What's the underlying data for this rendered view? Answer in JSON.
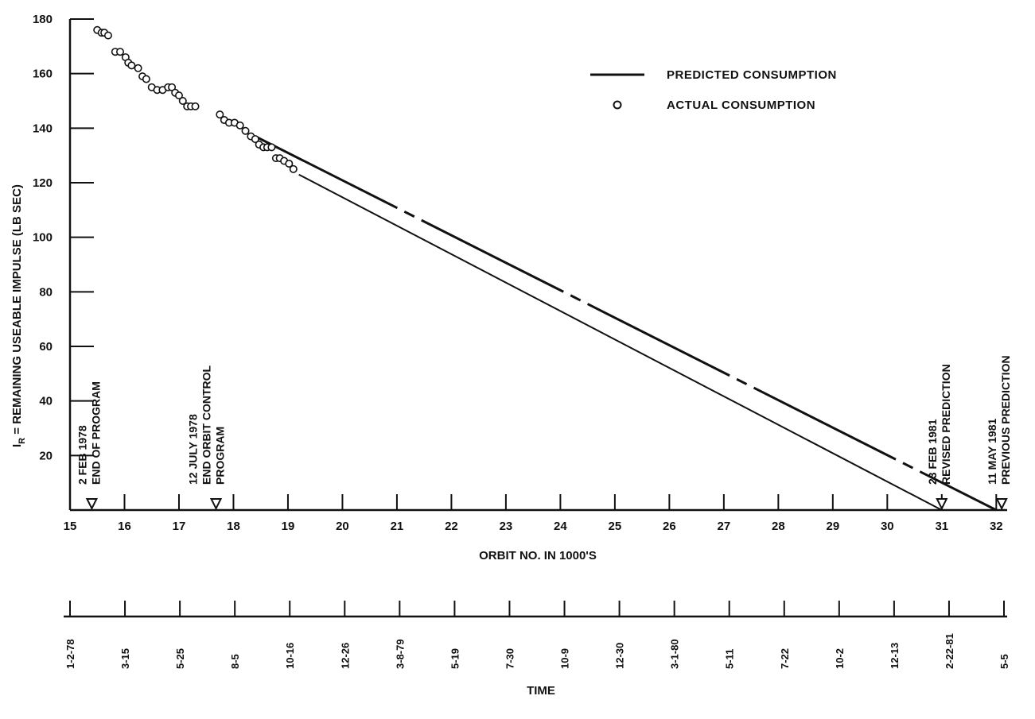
{
  "chart_data": {
    "type": "line",
    "xlabel": "ORBIT NO. IN 1000'S",
    "ylabel": "I",
    "ylabel_sub": "R",
    "ylabel_rest": " = REMAINING USEABLE IMPULSE (LB SEC)",
    "xlim": [
      15,
      32.2
    ],
    "ylim": [
      0,
      180
    ],
    "x_ticks": [
      15,
      16,
      17,
      18,
      19,
      20,
      21,
      22,
      23,
      24,
      25,
      26,
      27,
      28,
      29,
      30,
      31,
      32
    ],
    "y_ticks": [
      20,
      40,
      60,
      80,
      100,
      120,
      140,
      160,
      180
    ],
    "legend": {
      "predicted_label": "PREDICTED CONSUMPTION",
      "actual_label": "ACTUAL CONSUMPTION",
      "placement": "top-right"
    },
    "series": [
      {
        "name": "PREDICTED CONSUMPTION",
        "style": "solid",
        "x": [
          19.2,
          31.0
        ],
        "y": [
          123,
          0
        ]
      },
      {
        "name": "PREDICTED CONSUMPTION",
        "style": "dash-dot",
        "x": [
          18.4,
          32.0
        ],
        "y": [
          137,
          0
        ]
      },
      {
        "name": "ACTUAL CONSUMPTION",
        "style": "circles",
        "x": [
          15.5,
          15.58,
          15.63,
          15.7,
          15.83,
          15.92,
          16.02,
          16.07,
          16.13,
          16.25,
          16.33,
          16.4,
          16.5,
          16.6,
          16.7,
          16.8,
          16.87,
          16.93,
          17.0,
          17.07,
          17.15,
          17.22,
          17.3,
          17.75,
          17.83,
          17.92,
          18.02,
          18.12,
          18.22,
          18.32,
          18.4,
          18.47,
          18.55,
          18.62,
          18.7,
          18.78,
          18.85,
          18.93,
          19.02,
          19.1
        ],
        "y": [
          176,
          175,
          175,
          174,
          168,
          168,
          166,
          164,
          163,
          162,
          159,
          158,
          155,
          154,
          154,
          155,
          155,
          153,
          152,
          150,
          148,
          148,
          148,
          145,
          143,
          142,
          142,
          141,
          139,
          137,
          136,
          134,
          133,
          133,
          133,
          129,
          129,
          128,
          127,
          125
        ]
      }
    ],
    "markers": [
      {
        "x": 15.4,
        "lines": [
          "2 FEB 1978",
          "END OF PROGRAM"
        ]
      },
      {
        "x": 17.68,
        "lines": [
          "12 JULY 1978",
          "END ORBIT CONTROL",
          "PROGRAM"
        ]
      },
      {
        "x": 31.0,
        "lines": [
          "23 FEB 1981",
          "REVISED PREDICTION"
        ]
      },
      {
        "x": 32.1,
        "lines": [
          "11 MAY 1981",
          "PREVIOUS PREDICTION"
        ]
      }
    ],
    "time_axis": {
      "title": "TIME",
      "labels": [
        "1-2-78",
        "3-15",
        "5-25",
        "8-5",
        "10-16",
        "12-26",
        "3-8-79",
        "5-19",
        "7-30",
        "10-9",
        "12-30",
        "3-1-80",
        "5-11",
        "7-22",
        "10-2",
        "12-13",
        "2-22-81",
        "5-5"
      ]
    }
  }
}
